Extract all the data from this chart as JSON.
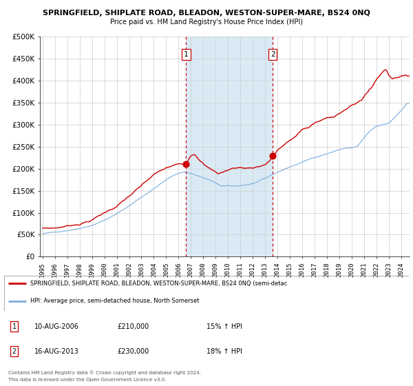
{
  "title": "SPRINGFIELD, SHIPLATE ROAD, BLEADON, WESTON-SUPER-MARE, BS24 0NQ",
  "subtitle": "Price paid vs. HM Land Registry's House Price Index (HPI)",
  "line1_label": "SPRINGFIELD, SHIPLATE ROAD, BLEADON, WESTON-SUPER-MARE, BS24 0NQ (semi-detac",
  "line2_label": "HPI: Average price, semi-detached house, North Somerset",
  "transaction1_date": "10-AUG-2006",
  "transaction1_price": 210000,
  "transaction1_hpi": "15% ↑ HPI",
  "transaction2_date": "16-AUG-2013",
  "transaction2_price": 230000,
  "transaction2_hpi": "18% ↑ HPI",
  "footer1": "Contains HM Land Registry data © Crown copyright and database right 2024.",
  "footer2": "This data is licensed under the Open Government Licence v3.0.",
  "ylim": [
    0,
    500000
  ],
  "yticks": [
    0,
    50000,
    100000,
    150000,
    200000,
    250000,
    300000,
    350000,
    400000,
    450000,
    500000
  ],
  "ytick_labels": [
    "£0",
    "£50K",
    "£100K",
    "£150K",
    "£200K",
    "£250K",
    "£300K",
    "£350K",
    "£400K",
    "£450K",
    "£500K"
  ],
  "line1_color": "#cc0000",
  "line2_color": "#7aaddb",
  "highlight_fill": "#daeaf5",
  "vline_color": "#cc0000",
  "grid_color": "#cccccc",
  "transaction1_x": 2006.62,
  "transaction2_x": 2013.62,
  "xmin": 1994.8,
  "xmax": 2024.7
}
